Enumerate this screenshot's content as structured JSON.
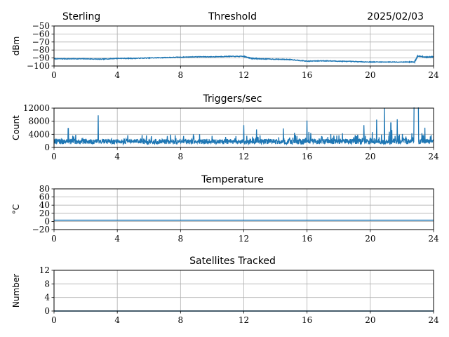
{
  "header": {
    "station": "Sterling",
    "date": "2025/02/03"
  },
  "chart_data": [
    {
      "type": "line",
      "title": "Threshold",
      "ylabel": "dBm",
      "xlim": [
        0,
        24
      ],
      "ylim": [
        -100,
        -50
      ],
      "xticks": [
        0,
        4,
        8,
        12,
        16,
        20,
        24
      ],
      "yticks": [
        -100,
        -90,
        -80,
        -70,
        -60,
        -50
      ],
      "grid": true,
      "color": "#1f77b4",
      "series": [
        {
          "x": [
            0,
            1,
            2,
            3,
            4,
            5,
            6,
            7,
            8,
            9,
            10,
            11,
            12,
            12.5,
            13,
            14,
            15,
            16,
            17,
            18,
            19,
            20,
            21,
            22,
            22.8,
            23,
            23.5,
            24
          ],
          "values": [
            -91,
            -91,
            -91,
            -91.5,
            -90.5,
            -90.5,
            -90,
            -89.5,
            -89,
            -88.5,
            -88.5,
            -88,
            -88,
            -90.5,
            -91,
            -91.5,
            -92,
            -94,
            -93.5,
            -94,
            -94.5,
            -95,
            -95,
            -95,
            -95,
            -87.5,
            -89,
            -88.5
          ]
        }
      ]
    },
    {
      "type": "line",
      "title": "Triggers/sec",
      "ylabel": "Count",
      "xlim": [
        0,
        24
      ],
      "ylim": [
        0,
        12000
      ],
      "xticks": [
        0,
        4,
        8,
        12,
        16,
        20,
        24
      ],
      "yticks": [
        0,
        4000,
        8000,
        12000
      ],
      "grid": true,
      "color": "#1f77b4",
      "spikes": [
        {
          "x": 0.9,
          "y": 5800
        },
        {
          "x": 2.8,
          "y": 9800
        },
        {
          "x": 12.0,
          "y": 6800
        },
        {
          "x": 12.8,
          "y": 5500
        },
        {
          "x": 14.5,
          "y": 5800
        },
        {
          "x": 16.0,
          "y": 8200
        },
        {
          "x": 19.6,
          "y": 6800
        },
        {
          "x": 20.4,
          "y": 8500
        },
        {
          "x": 20.9,
          "y": 12000
        },
        {
          "x": 21.3,
          "y": 7500
        },
        {
          "x": 21.7,
          "y": 8600
        },
        {
          "x": 22.8,
          "y": 12000
        },
        {
          "x": 22.9,
          "y": 12000
        }
      ]
    },
    {
      "type": "line",
      "title": "Temperature",
      "ylabel": "°C",
      "xlim": [
        0,
        24
      ],
      "ylim": [
        -20,
        80
      ],
      "xticks": [
        0,
        4,
        8,
        12,
        16,
        20,
        24
      ],
      "yticks": [
        -20,
        0,
        20,
        40,
        60,
        80
      ],
      "grid": true,
      "color": "#1f77b4",
      "series": [
        {
          "x": [
            0,
            24
          ],
          "values": [
            3,
            3
          ]
        }
      ]
    },
    {
      "type": "line",
      "title": "Satellites Tracked",
      "ylabel": "Number",
      "xlim": [
        0,
        24
      ],
      "ylim": [
        0,
        12
      ],
      "xticks": [
        0,
        4,
        8,
        12,
        16,
        20,
        24
      ],
      "yticks": [
        0,
        4,
        8,
        12
      ],
      "grid": true,
      "color": "#1f77b4",
      "series": [
        {
          "x": [
            0,
            24
          ],
          "values": [
            0,
            0
          ]
        }
      ]
    }
  ]
}
